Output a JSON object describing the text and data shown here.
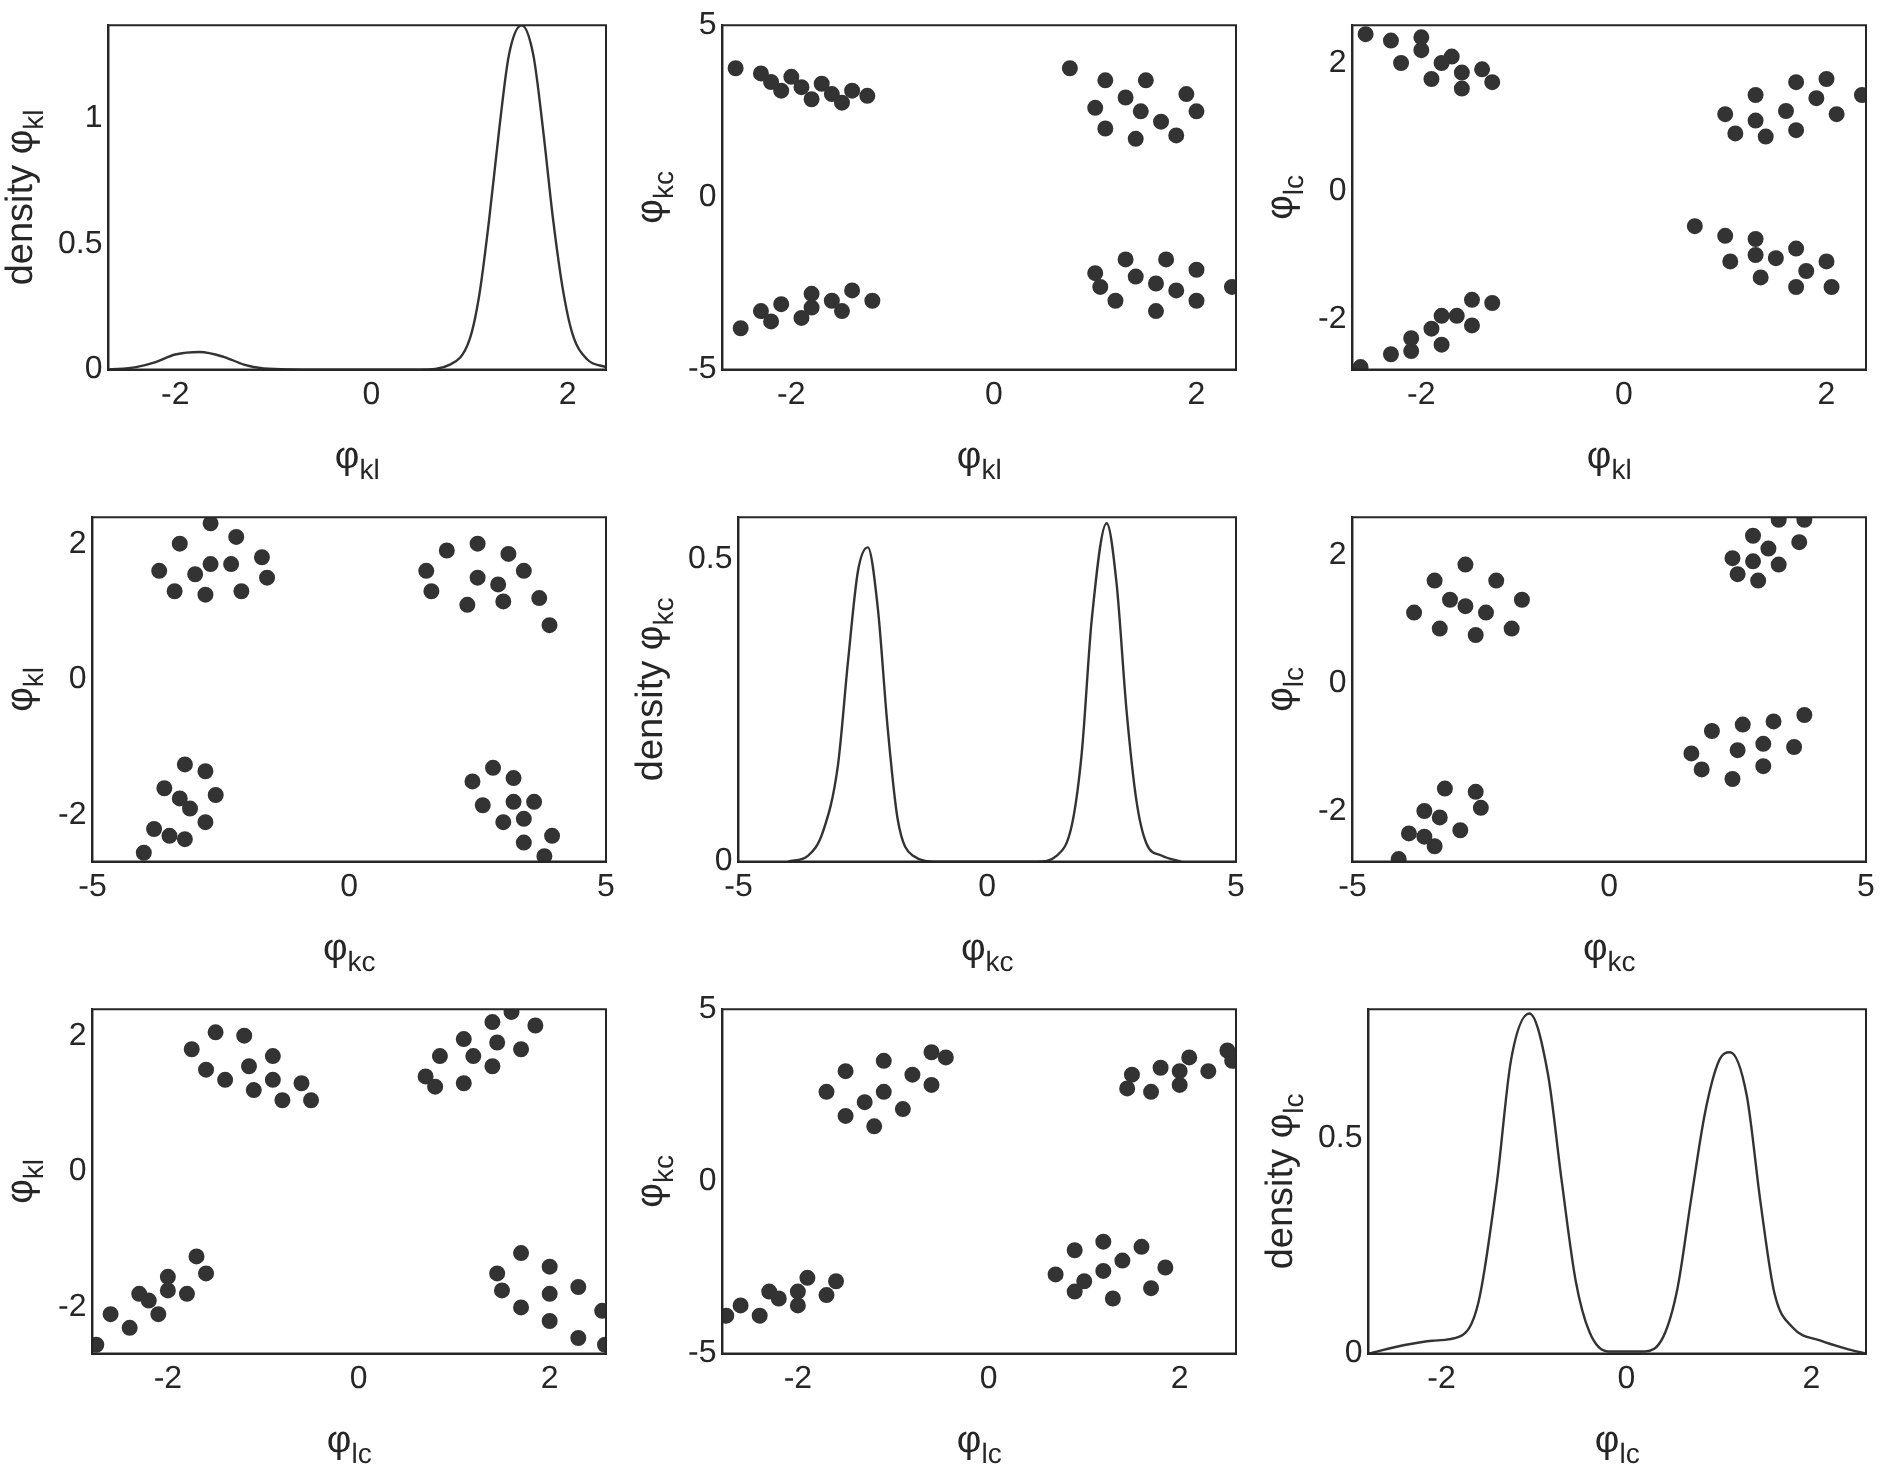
{
  "chart_data": [
    {
      "type": "line",
      "xlabel": "φ$_{kl}$",
      "ylabel": "density φ$_{kl}$",
      "xlim": [
        -2.68,
        2.39
      ],
      "ylim": [
        0,
        1.37
      ],
      "xticks": [
        -2,
        0,
        2
      ],
      "yticks": [
        0,
        0.5,
        1
      ],
      "color": "#333333",
      "x": [
        -2.68,
        -2.4,
        -2.2,
        -2.0,
        -1.75,
        -1.5,
        -1.3,
        -1.1,
        -0.5,
        0.5,
        0.8,
        1.0,
        1.1,
        1.2,
        1.3,
        1.4,
        1.53,
        1.65,
        1.75,
        1.85,
        1.95,
        2.05,
        2.2,
        2.39
      ],
      "values": [
        0,
        0.01,
        0.03,
        0.06,
        0.07,
        0.05,
        0.02,
        0.005,
        0,
        0,
        0.02,
        0.12,
        0.3,
        0.6,
        0.95,
        1.25,
        1.37,
        1.25,
        0.95,
        0.6,
        0.32,
        0.14,
        0.04,
        0.01
      ]
    },
    {
      "type": "scatter",
      "xlabel": "φ$_{kl}$",
      "ylabel": "φ$_{kc}$",
      "xlim": [
        -2.68,
        2.39
      ],
      "ylim": [
        -5,
        5
      ],
      "xticks": [
        -2,
        0,
        2
      ],
      "yticks": [
        -5,
        0,
        5
      ],
      "color": "#333333",
      "marker": "circle",
      "x": [
        -2.55,
        -2.3,
        -2.0,
        -1.7,
        -1.4,
        -1.25,
        -1.5,
        -1.8,
        -2.1,
        -1.9,
        -1.6,
        -2.2,
        0.75,
        1.1,
        1.5,
        1.9,
        2.0,
        1.8,
        1.4,
        1.1,
        1.0,
        1.45,
        1.3,
        1.65,
        -2.5,
        -2.2,
        -1.9,
        -1.5,
        -1.2,
        -1.4,
        -1.8,
        -2.1,
        -1.8,
        -1.6,
        -2.3,
        1.0,
        1.3,
        1.7,
        2.0,
        2.35,
        2.0,
        1.6,
        1.2,
        1.05,
        1.6,
        1.4,
        1.8
      ],
      "values": [
        3.75,
        3.6,
        3.5,
        3.3,
        3.1,
        2.95,
        2.75,
        2.85,
        3.1,
        3.2,
        3.0,
        3.35,
        3.75,
        3.4,
        3.4,
        3.0,
        2.5,
        1.8,
        1.7,
        2.0,
        2.6,
        2.5,
        2.9,
        2.2,
        -3.8,
        -3.6,
        -3.5,
        -3.3,
        -3.0,
        -2.7,
        -2.8,
        -3.1,
        -3.2,
        -3.0,
        -3.3,
        -2.2,
        -1.8,
        -1.8,
        -2.1,
        -2.6,
        -3.0,
        -3.3,
        -3.0,
        -2.6,
        -2.5,
        -2.3,
        -2.7
      ]
    },
    {
      "type": "scatter",
      "xlabel": "φ$_{kl}$",
      "ylabel": "φ$_{lc}$",
      "xlim": [
        -2.68,
        2.39
      ],
      "ylim": [
        -2.79,
        2.59
      ],
      "xticks": [
        -2,
        0,
        2
      ],
      "yticks": [
        -2,
        0,
        2
      ],
      "color": "#333333",
      "marker": "circle",
      "x": [
        -2.55,
        -2.3,
        -2.0,
        -1.7,
        -1.4,
        -1.3,
        -1.6,
        -1.9,
        -2.2,
        -1.8,
        -2.0,
        -1.6,
        1.1,
        1.0,
        1.3,
        1.7,
        2.0,
        2.35,
        2.1,
        1.7,
        1.4,
        1.6,
        1.3,
        1.9,
        0.7,
        1.0,
        1.3,
        1.7,
        2.0,
        2.05,
        1.7,
        1.35,
        1.05,
        1.5,
        1.3,
        1.8,
        -2.6,
        -2.3,
        -2.1,
        -1.8,
        -1.5,
        -1.3,
        -1.5,
        -1.8,
        -2.1,
        -1.9,
        -1.65
      ],
      "values": [
        2.45,
        2.35,
        2.4,
        2.1,
        1.9,
        1.7,
        1.6,
        1.75,
        2.0,
        2.0,
        2.2,
        1.85,
        0.9,
        1.2,
        1.5,
        1.7,
        1.75,
        1.5,
        1.2,
        0.95,
        0.85,
        1.25,
        1.1,
        1.45,
        -0.55,
        -0.7,
        -0.75,
        -0.9,
        -1.1,
        -1.5,
        -1.5,
        -1.35,
        -1.1,
        -1.05,
        -1.0,
        -1.25,
        -2.75,
        -2.55,
        -2.3,
        -1.95,
        -1.7,
        -1.75,
        -2.1,
        -2.4,
        -2.5,
        -2.15,
        -1.95
      ]
    },
    {
      "type": "scatter",
      "xlabel": "φ$_{kc}$",
      "ylabel": "φ$_{kl}$",
      "xlim": [
        -5,
        5
      ],
      "ylim": [
        -2.68,
        2.39
      ],
      "xticks": [
        -5,
        0,
        5
      ],
      "yticks": [
        -2,
        0,
        2
      ],
      "color": "#333333",
      "marker": "circle",
      "x": [
        -3.7,
        -3.3,
        -2.7,
        -2.2,
        -1.7,
        -1.6,
        -2.1,
        -2.8,
        -3.4,
        -2.7,
        -3.0,
        -2.3,
        1.5,
        1.9,
        2.5,
        3.1,
        3.4,
        3.7,
        3.9,
        3.0,
        2.3,
        1.6,
        2.5,
        2.9,
        -4.0,
        -3.8,
        -3.6,
        -3.2,
        -2.8,
        -2.6,
        -2.8,
        -3.2,
        -3.5,
        -3.3,
        -3.1,
        2.4,
        2.8,
        3.2,
        3.6,
        3.95,
        3.8,
        3.4,
        3.0,
        2.6,
        3.2,
        3.4
      ],
      "values": [
        1.6,
        2.0,
        2.3,
        2.1,
        1.8,
        1.5,
        1.3,
        1.25,
        1.3,
        1.7,
        1.55,
        1.7,
        1.6,
        1.9,
        2.0,
        1.85,
        1.6,
        1.2,
        0.8,
        1.15,
        1.1,
        1.3,
        1.5,
        1.4,
        -2.55,
        -2.2,
        -1.6,
        -1.25,
        -1.35,
        -1.7,
        -2.1,
        -2.35,
        -2.3,
        -1.75,
        -1.9,
        -1.5,
        -1.3,
        -1.45,
        -1.8,
        -2.3,
        -2.6,
        -2.4,
        -2.1,
        -1.85,
        -1.8,
        -2.05
      ]
    },
    {
      "type": "line",
      "xlabel": "φ$_{kc}$",
      "ylabel": "density φ$_{kc}$",
      "xlim": [
        -5,
        5
      ],
      "ylim": [
        0,
        0.57
      ],
      "xticks": [
        -5,
        0,
        5
      ],
      "yticks": [
        0,
        0.5
      ],
      "color": "#333333",
      "x": [
        -4.0,
        -3.6,
        -3.3,
        -3.0,
        -2.8,
        -2.6,
        -2.4,
        -2.2,
        -2.0,
        -1.8,
        -1.5,
        -1.0,
        1.0,
        1.4,
        1.7,
        1.9,
        2.1,
        2.4,
        2.6,
        2.8,
        3.0,
        3.2,
        3.5,
        3.9
      ],
      "values": [
        0,
        0.01,
        0.05,
        0.16,
        0.33,
        0.48,
        0.52,
        0.42,
        0.22,
        0.07,
        0.01,
        0,
        0,
        0.01,
        0.06,
        0.18,
        0.4,
        0.56,
        0.46,
        0.25,
        0.1,
        0.03,
        0.01,
        0
      ]
    },
    {
      "type": "scatter",
      "xlabel": "φ$_{kc}$",
      "ylabel": "φ$_{lc}$",
      "xlim": [
        -5,
        5
      ],
      "ylim": [
        -2.79,
        2.59
      ],
      "xticks": [
        -5,
        0,
        5
      ],
      "yticks": [
        -2,
        0,
        2
      ],
      "color": "#333333",
      "marker": "circle",
      "x": [
        -3.8,
        -3.4,
        -2.8,
        -2.2,
        -1.7,
        -1.9,
        -2.6,
        -3.3,
        -2.8,
        -3.1,
        -2.4,
        2.5,
        2.4,
        2.8,
        3.3,
        3.8,
        3.7,
        3.3,
        2.9,
        3.1,
        2.8,
        1.6,
        2.0,
        2.6,
        3.2,
        3.8,
        3.6,
        3.0,
        2.4,
        1.8,
        2.5,
        3.0,
        -4.1,
        -3.9,
        -3.6,
        -3.2,
        -2.6,
        -2.5,
        -2.9,
        -3.4,
        -3.6,
        -3.3
      ],
      "values": [
        1.1,
        1.6,
        1.85,
        1.6,
        1.3,
        0.85,
        0.75,
        0.85,
        1.2,
        1.3,
        1.1,
        1.7,
        1.95,
        2.3,
        2.55,
        2.55,
        2.2,
        1.85,
        1.6,
        2.1,
        1.9,
        -1.1,
        -0.75,
        -0.65,
        -0.6,
        -0.5,
        -1.0,
        -1.3,
        -1.5,
        -1.35,
        -1.05,
        -0.95,
        -2.75,
        -2.35,
        -2.0,
        -1.65,
        -1.7,
        -1.95,
        -2.3,
        -2.55,
        -2.4,
        -2.1
      ]
    },
    {
      "type": "scatter",
      "xlabel": "φ$_{lc}$",
      "ylabel": "φ$_{kl}$",
      "xlim": [
        -2.79,
        2.59
      ],
      "ylim": [
        -2.68,
        2.39
      ],
      "xticks": [
        -2,
        0,
        2
      ],
      "yticks": [
        -2,
        0,
        2
      ],
      "color": "#333333",
      "marker": "circle",
      "x": [
        -1.75,
        -1.5,
        -1.2,
        -0.9,
        -0.6,
        -0.5,
        -0.8,
        -1.1,
        -1.4,
        -1.6,
        -1.15,
        -0.9,
        0.7,
        0.85,
        1.1,
        1.4,
        1.6,
        1.85,
        1.7,
        1.4,
        1.1,
        0.8,
        1.2,
        1.45,
        -2.75,
        -2.6,
        -2.3,
        -2.0,
        -1.7,
        -1.6,
        -1.8,
        -2.1,
        -2.4,
        -2.2,
        -2.0,
        1.45,
        1.7,
        2.0,
        2.3,
        2.55,
        2.58,
        2.3,
        2.0,
        1.7,
        1.5,
        2.0
      ],
      "values": [
        1.8,
        2.05,
        2.0,
        1.7,
        1.3,
        1.05,
        1.05,
        1.2,
        1.35,
        1.5,
        1.55,
        1.35,
        1.4,
        1.7,
        1.95,
        2.2,
        2.35,
        2.15,
        1.8,
        1.55,
        1.3,
        1.25,
        1.7,
        1.9,
        -2.55,
        -2.1,
        -1.8,
        -1.55,
        -1.25,
        -1.5,
        -1.8,
        -2.1,
        -2.3,
        -1.9,
        -1.75,
        -1.5,
        -1.2,
        -1.4,
        -1.7,
        -2.05,
        -2.55,
        -2.45,
        -2.2,
        -2.0,
        -1.75,
        -1.8
      ]
    },
    {
      "type": "scatter",
      "xlabel": "φ$_{lc}$",
      "ylabel": "φ$_{kc}$",
      "xlim": [
        -2.79,
        2.59
      ],
      "ylim": [
        -5,
        5
      ],
      "xticks": [
        -2,
        0,
        2
      ],
      "yticks": [
        -5,
        0,
        5
      ],
      "color": "#333333",
      "marker": "circle",
      "x": [
        -1.7,
        -1.5,
        -1.1,
        -0.6,
        -0.45,
        -0.6,
        -0.9,
        -1.2,
        -1.5,
        -1.1,
        -1.3,
        -0.8,
        1.45,
        1.5,
        1.8,
        2.1,
        2.5,
        2.55,
        2.3,
        2.0,
        1.7,
        2.0,
        -2.75,
        -2.6,
        -2.3,
        -1.9,
        -1.6,
        -1.7,
        -2.0,
        -2.4,
        -2.2,
        -2.0,
        0.7,
        0.9,
        1.2,
        1.6,
        1.85,
        1.7,
        1.3,
        0.9,
        1.2,
        1.4,
        1.0
      ],
      "values": [
        2.6,
        3.2,
        3.5,
        3.75,
        3.6,
        2.8,
        2.1,
        1.6,
        1.9,
        2.6,
        2.3,
        3.1,
        2.7,
        3.1,
        3.3,
        3.6,
        3.8,
        3.5,
        3.2,
        2.8,
        2.6,
        3.2,
        -3.9,
        -3.6,
        -3.2,
        -2.8,
        -2.9,
        -3.3,
        -3.6,
        -3.9,
        -3.4,
        -3.2,
        -2.7,
        -2.0,
        -1.75,
        -1.9,
        -2.5,
        -3.1,
        -3.4,
        -3.2,
        -2.6,
        -2.3,
        -2.9
      ]
    },
    {
      "type": "line",
      "xlabel": "φ$_{lc}$",
      "ylabel": "density φ$_{lc}$",
      "xlim": [
        -2.79,
        2.59
      ],
      "ylim": [
        0,
        0.8
      ],
      "xticks": [
        -2,
        0,
        2
      ],
      "yticks": [
        0,
        0.5
      ],
      "color": "#333333",
      "x": [
        -2.79,
        -2.4,
        -2.1,
        -1.8,
        -1.6,
        -1.4,
        -1.25,
        -1.05,
        -0.85,
        -0.7,
        -0.55,
        -0.4,
        -0.2,
        0.2,
        0.4,
        0.55,
        0.7,
        0.85,
        1.0,
        1.12,
        1.3,
        1.45,
        1.6,
        1.8,
        2.1,
        2.4,
        2.59
      ],
      "values": [
        0,
        0.02,
        0.03,
        0.04,
        0.12,
        0.4,
        0.68,
        0.79,
        0.65,
        0.4,
        0.17,
        0.05,
        0.005,
        0.005,
        0.04,
        0.15,
        0.36,
        0.56,
        0.68,
        0.7,
        0.6,
        0.35,
        0.14,
        0.06,
        0.03,
        0.01,
        0
      ]
    }
  ]
}
